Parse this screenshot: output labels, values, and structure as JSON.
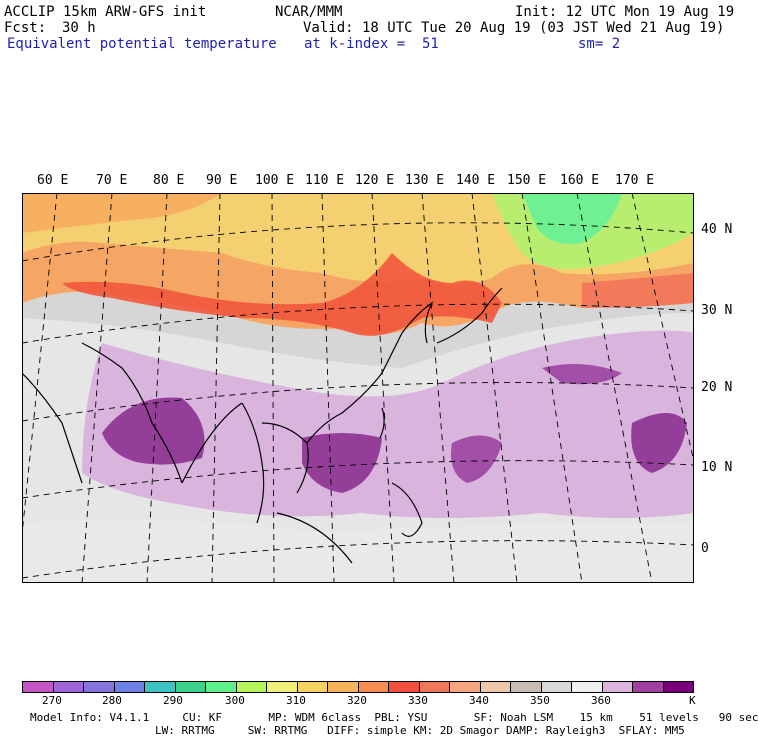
{
  "header": {
    "model": "ACCLIP 15km ARW-GFS init",
    "org": "NCAR/MMM",
    "init": "Init: 12 UTC Mon 19 Aug 19",
    "fcst_label": "Fcst:",
    "fcst_value": "30 h",
    "valid": "Valid: 18 UTC Tue 20 Aug 19 (03 JST Wed 21 Aug 19)",
    "field": "Equivalent potential temperature",
    "level": "at k-index =  51",
    "smooth": "sm= 2"
  },
  "map": {
    "lon_labels": [
      "60 E",
      "70 E",
      "80 E",
      "90 E",
      "100 E",
      "110 E",
      "120 E",
      "130 E",
      "140 E",
      "150 E",
      "160 E",
      "170 E"
    ],
    "lat_labels": [
      "40 N",
      "30 N",
      "20 N",
      "10 N",
      "0"
    ]
  },
  "colorbar": {
    "colors": [
      "#c455c4",
      "#a065d8",
      "#8573e0",
      "#6f81e6",
      "#3cc3c3",
      "#3cd28c",
      "#5ef08a",
      "#b4f55a",
      "#f0f078",
      "#f7d25f",
      "#f6b45a",
      "#f68c50",
      "#f2503c",
      "#f0785a",
      "#f5a680",
      "#f0c8a8",
      "#c8bcb4",
      "#d8d8d8",
      "#f0f0f0",
      "#dcb4dc",
      "#a040a0",
      "#7a007a"
    ],
    "tick_labels": [
      "270",
      "280",
      "290",
      "300",
      "310",
      "320",
      "330",
      "340",
      "350",
      "360"
    ],
    "unit": "K"
  },
  "footer": {
    "line1": "Model Info: V4.1.1     CU: KF       MP: WDM 6class  PBL: YSU       SF: Noah LSM    15 km    51 levels   90 sec",
    "line2": "LW: RRTMG     SW: RRTMG   DIFF: simple KM: 2D Smagor DAMP: Rayleigh3  SFLAY: MM5"
  }
}
